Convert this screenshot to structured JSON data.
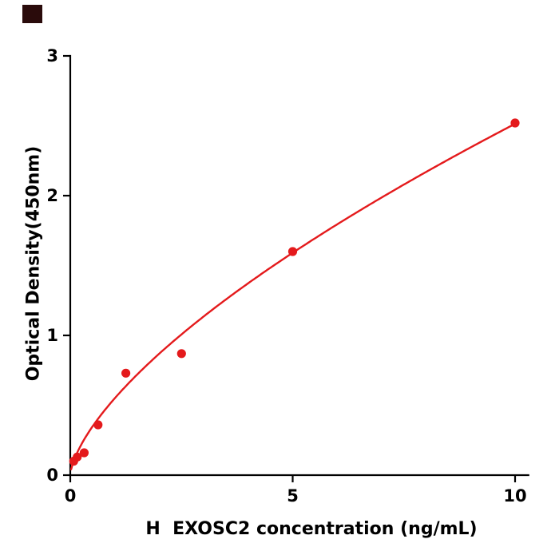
{
  "page": {
    "background": "#ffffff",
    "corner_mark_color": "#2a0b0b"
  },
  "chart_data": {
    "type": "scatter",
    "title": "",
    "xlabel": "H  EXOSC2 concentration (ng/mL)",
    "ylabel": "Optical Density(450nm)",
    "x": [
      0.078,
      0.156,
      0.313,
      0.625,
      1.25,
      2.5,
      5,
      10
    ],
    "y": [
      0.1,
      0.13,
      0.16,
      0.36,
      0.73,
      0.87,
      1.6,
      2.52
    ],
    "xlim": [
      0,
      10.3
    ],
    "ylim": [
      0,
      3
    ],
    "xticks": [
      0,
      5,
      10
    ],
    "yticks": [
      0,
      1,
      2,
      3
    ],
    "grid": false,
    "legend_position": "none",
    "point_color": "#e41a1c",
    "line_color": "#e41a1c",
    "axis_color": "#000000",
    "fit": {
      "type": "power",
      "a": 0.55,
      "b": 0.66
    }
  }
}
